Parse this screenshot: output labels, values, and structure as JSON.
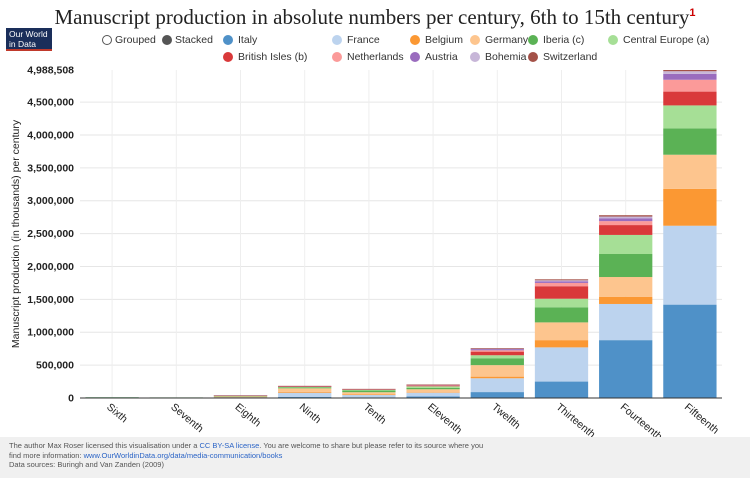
{
  "title": "Manuscript production in absolute numbers per century, 6th to 15th century",
  "title_note": "1",
  "logo": {
    "line1": "Our World",
    "line2": "in Data"
  },
  "controls": {
    "grouped": "Grouped",
    "stacked": "Stacked",
    "selected": "stacked"
  },
  "chart_data": {
    "type": "bar",
    "stacked": true,
    "title": "Manuscript production in absolute numbers per century, 6th to 15th century",
    "ylabel": "Manuscript production (in thousands) per century",
    "xlabel": "",
    "ylim": [
      0,
      4988508
    ],
    "yticks": [
      0,
      500000,
      1000000,
      1500000,
      2000000,
      2500000,
      3000000,
      3500000,
      4000000,
      4500000
    ],
    "ymax_label": "4,988,508",
    "ytick_labels": [
      "0",
      "500,000",
      "1,000,000",
      "1,500,000",
      "2,000,000",
      "2,500,000",
      "3,000,000",
      "3,500,000",
      "4,000,000",
      "4,500,000"
    ],
    "grid": true,
    "legend": "top",
    "categories": [
      "Sixth",
      "Seventh",
      "Eighth",
      "Ninth",
      "Tenth",
      "Eleventh",
      "Twelfth",
      "Thirteenth",
      "Fourteenth",
      "Fifteenth"
    ],
    "series": [
      {
        "name": "Italy",
        "color": "#4f91c8",
        "values": [
          8000,
          6000,
          8000,
          15000,
          8000,
          25000,
          90000,
          250000,
          880000,
          1420000
        ]
      },
      {
        "name": "France",
        "color": "#bcd3ee",
        "values": [
          2000,
          2000,
          10000,
          65000,
          40000,
          55000,
          210000,
          520000,
          550000,
          1200000
        ]
      },
      {
        "name": "Belgium",
        "color": "#fb9833",
        "values": [
          0,
          0,
          2000,
          12000,
          5000,
          8000,
          25000,
          110000,
          110000,
          560000
        ]
      },
      {
        "name": "Germany",
        "color": "#fdc58e",
        "values": [
          0,
          0,
          8000,
          55000,
          35000,
          45000,
          175000,
          270000,
          300000,
          520000
        ]
      },
      {
        "name": "Iberia (c)",
        "color": "#5bb255",
        "values": [
          1000,
          1000,
          4000,
          13000,
          25000,
          20000,
          105000,
          230000,
          350000,
          400000
        ]
      },
      {
        "name": "Central Europe (a)",
        "color": "#a6df96",
        "values": [
          0,
          0,
          2000,
          8000,
          12000,
          25000,
          45000,
          130000,
          290000,
          350000
        ]
      },
      {
        "name": "British Isles (b)",
        "color": "#d9393a",
        "values": [
          0,
          0,
          4000,
          10000,
          8000,
          15000,
          55000,
          190000,
          150000,
          210000
        ]
      },
      {
        "name": "Netherlands",
        "color": "#fb9a99",
        "values": [
          0,
          0,
          0,
          1000,
          1000,
          3000,
          20000,
          50000,
          60000,
          180000
        ]
      },
      {
        "name": "Austria",
        "color": "#9a6cbe",
        "values": [
          0,
          0,
          1000,
          3000,
          3000,
          5000,
          20000,
          25000,
          40000,
          90000
        ]
      },
      {
        "name": "Bohemia",
        "color": "#c7b6d8",
        "values": [
          0,
          0,
          0,
          0,
          0,
          1000,
          5000,
          15000,
          30000,
          40000
        ]
      },
      {
        "name": "Switzerland",
        "color": "#a45148",
        "values": [
          0,
          0,
          1000,
          3000,
          2000,
          3000,
          10000,
          15000,
          20000,
          18500
        ]
      }
    ]
  },
  "footer": {
    "line1_a": "The author Max Roser licensed this visualisation under a ",
    "license": "CC BY-SA license",
    "line1_b": ". You are welcome to share but please refer to its source where you",
    "line2_a": "find more information: ",
    "url": "www.OurWorldinData.org/data/media-communication/books",
    "line3": "Data sources: Buringh and Van Zanden (2009)"
  }
}
